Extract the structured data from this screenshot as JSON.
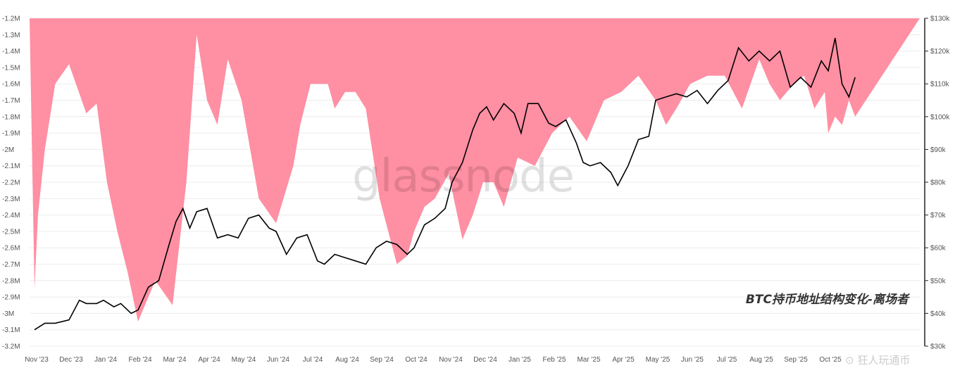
{
  "chart_data": {
    "type": "area",
    "title": "",
    "watermark": "glassnode",
    "annotation": "BTC持币地址结构变化-离场者",
    "credit": "⊙ 狂人玩通币",
    "colors": {
      "area": "#ff8fa3",
      "line": "#000000"
    },
    "grid": true,
    "x_ticks": [
      "Nov '23",
      "Dec '23",
      "Jan '24",
      "Feb '24",
      "Mar '24",
      "Apr '24",
      "May '24",
      "Jun '24",
      "Jul '24",
      "Aug '24",
      "Sep '24",
      "Oct '24",
      "Nov '24",
      "Dec '24",
      "Jan '25",
      "Feb '25",
      "Mar '25",
      "Apr '25",
      "May '25",
      "Jun '25",
      "Jul '25",
      "Aug '25",
      "Sep '25",
      "Oct '25"
    ],
    "y_left": {
      "ticks": [
        "-1.2M",
        "-1.3M",
        "-1.4M",
        "-1.5M",
        "-1.6M",
        "-1.7M",
        "-1.8M",
        "-1.9M",
        "-2M",
        "-2.1M",
        "-2.2M",
        "-2.3M",
        "-2.4M",
        "-2.5M",
        "-2.6M",
        "-2.7M",
        "-2.8M",
        "-2.9M",
        "-3M",
        "-3.1M",
        "-3.2M"
      ],
      "range": [
        -3.2,
        -1.2
      ],
      "unit": "M"
    },
    "y_right": {
      "ticks": [
        "$130k",
        "$120k",
        "$110k",
        "$100k",
        "$90k",
        "$80k",
        "$70k",
        "$60k",
        "$50k",
        "$40k",
        "$30k"
      ],
      "range": [
        30,
        130
      ],
      "unit": "k"
    },
    "series": [
      {
        "type": "area",
        "axis": "left",
        "x": [
          0,
          0.1,
          0.3,
          0.6,
          1,
          1.5,
          1.8,
          2.1,
          2.4,
          2.7,
          3,
          3.5,
          4,
          4.4,
          4.7,
          5,
          5.3,
          5.6,
          6,
          6.5,
          7,
          7.5,
          7.7,
          8,
          8.5,
          8.7,
          9,
          9.3,
          9.6,
          10,
          10.5,
          10.8,
          11,
          11.3,
          11.6,
          12,
          12.4,
          12.7,
          13,
          13.3,
          13.6,
          14,
          14.5,
          15,
          15.5,
          16,
          16.5,
          17,
          17.5,
          18,
          18.3,
          18.6,
          19,
          19.5,
          20,
          20.5,
          21,
          21.3,
          21.6,
          22,
          22.3,
          22.6,
          22.9,
          23,
          23.2,
          23.4,
          23.6,
          23.78
        ],
        "y": [
          -2.85,
          -2.4,
          -2.0,
          -1.6,
          -1.48,
          -1.78,
          -1.72,
          -2.2,
          -2.5,
          -2.75,
          -3.05,
          -2.8,
          -2.95,
          -2.2,
          -1.3,
          -1.7,
          -1.85,
          -1.45,
          -1.7,
          -2.3,
          -2.45,
          -2.1,
          -1.85,
          -1.6,
          -1.6,
          -1.75,
          -1.65,
          -1.65,
          -1.75,
          -2.3,
          -2.7,
          -2.65,
          -2.5,
          -2.35,
          -2.3,
          -2.15,
          -2.55,
          -2.4,
          -2.2,
          -2.2,
          -2.35,
          -2.05,
          -2.1,
          -1.9,
          -1.8,
          -1.95,
          -1.7,
          -1.65,
          -1.55,
          -1.7,
          -1.85,
          -1.75,
          -1.6,
          -1.55,
          -1.55,
          -1.75,
          -1.45,
          -1.6,
          -1.7,
          -1.6,
          -1.55,
          -1.75,
          -1.65,
          -1.9,
          -1.8,
          -1.85,
          -1.7,
          -1.8
        ]
      },
      {
        "type": "line",
        "axis": "right",
        "x": [
          0,
          0.3,
          0.6,
          1,
          1.3,
          1.5,
          1.8,
          2,
          2.3,
          2.5,
          2.8,
          3,
          3.3,
          3.6,
          3.9,
          4.1,
          4.3,
          4.5,
          4.7,
          5,
          5.3,
          5.6,
          5.9,
          6.2,
          6.5,
          6.8,
          7,
          7.3,
          7.6,
          7.9,
          8.2,
          8.4,
          8.7,
          9,
          9.3,
          9.6,
          9.9,
          10.2,
          10.5,
          10.8,
          11,
          11.3,
          11.6,
          11.9,
          12.1,
          12.4,
          12.7,
          12.9,
          13.1,
          13.3,
          13.6,
          13.9,
          14.1,
          14.3,
          14.6,
          14.9,
          15.1,
          15.4,
          15.7,
          15.9,
          16.1,
          16.4,
          16.7,
          16.9,
          17.2,
          17.5,
          17.8,
          18,
          18.3,
          18.6,
          18.9,
          19.2,
          19.5,
          19.8,
          20.1,
          20.4,
          20.7,
          21,
          21.3,
          21.6,
          21.9,
          22.2,
          22.5,
          22.8,
          23,
          23.2,
          23.4,
          23.6,
          23.78
        ],
        "y": [
          35,
          37,
          37,
          38,
          44,
          43,
          43,
          44,
          42,
          43,
          40,
          41,
          48,
          50,
          61,
          68,
          72,
          66,
          71,
          72,
          63,
          64,
          63,
          69,
          70,
          66,
          65,
          58,
          63,
          64,
          56,
          55,
          58,
          57,
          56,
          55,
          60,
          62,
          61,
          58,
          60,
          67,
          69,
          72,
          80,
          86,
          96,
          101,
          103,
          99,
          104,
          101,
          95,
          104,
          104,
          98,
          97,
          99,
          92,
          86,
          85,
          86,
          83,
          79,
          85,
          93,
          94,
          105,
          106,
          107,
          106,
          108,
          104,
          108,
          111,
          121,
          117,
          120,
          117,
          120,
          109,
          112,
          109,
          117,
          114,
          124,
          110,
          106,
          112
        ]
      }
    ]
  }
}
